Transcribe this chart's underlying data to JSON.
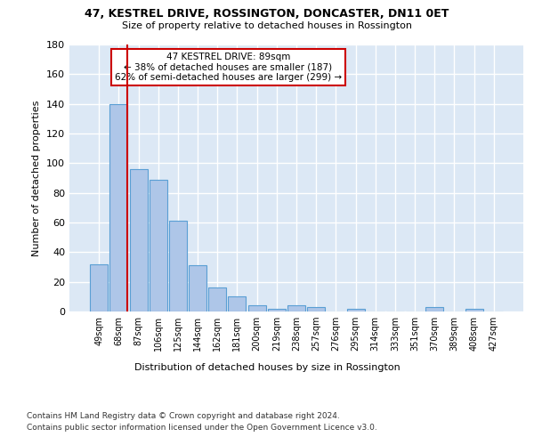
{
  "title": "47, KESTREL DRIVE, ROSSINGTON, DONCASTER, DN11 0ET",
  "subtitle": "Size of property relative to detached houses in Rossington",
  "xlabel": "Distribution of detached houses by size in Rossington",
  "ylabel": "Number of detached properties",
  "bar_labels": [
    "49sqm",
    "68sqm",
    "87sqm",
    "106sqm",
    "125sqm",
    "144sqm",
    "162sqm",
    "181sqm",
    "200sqm",
    "219sqm",
    "238sqm",
    "257sqm",
    "276sqm",
    "295sqm",
    "314sqm",
    "333sqm",
    "351sqm",
    "370sqm",
    "389sqm",
    "408sqm",
    "427sqm"
  ],
  "bar_values": [
    32,
    140,
    96,
    89,
    61,
    31,
    16,
    10,
    4,
    2,
    4,
    3,
    0,
    2,
    0,
    0,
    0,
    3,
    0,
    2,
    0
  ],
  "bar_color": "#aec6e8",
  "bar_edge_color": "#5a9fd4",
  "background_color": "#dce8f5",
  "grid_color": "#ffffff",
  "red_line_x": 2,
  "annotation_text": "47 KESTREL DRIVE: 89sqm\n← 38% of detached houses are smaller (187)\n62% of semi-detached houses are larger (299) →",
  "annotation_box_color": "#ffffff",
  "annotation_box_edge_color": "#cc0000",
  "ylim": [
    0,
    180
  ],
  "yticks": [
    0,
    20,
    40,
    60,
    80,
    100,
    120,
    140,
    160,
    180
  ],
  "footer_line1": "Contains HM Land Registry data © Crown copyright and database right 2024.",
  "footer_line2": "Contains public sector information licensed under the Open Government Licence v3.0."
}
